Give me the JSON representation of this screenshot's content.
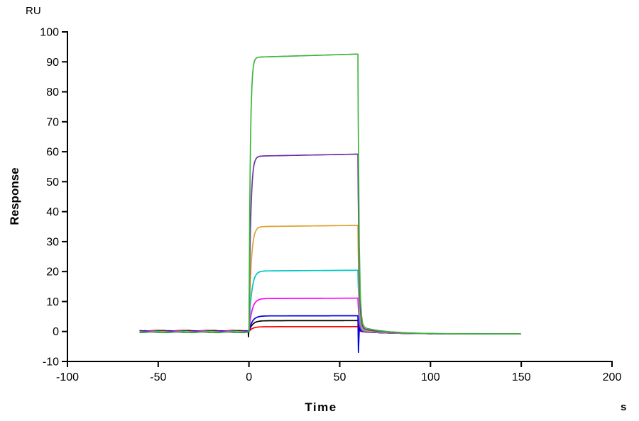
{
  "chart_data": {
    "type": "line",
    "title": "",
    "xlabel": "Time",
    "x_unit": "s",
    "ylabel": "Response",
    "y_unit": "RU",
    "xlim": [
      -100,
      200
    ],
    "ylim": [
      -10,
      100
    ],
    "x_ticks": [
      -100,
      -50,
      0,
      50,
      100,
      150,
      200
    ],
    "y_ticks": [
      -10,
      0,
      10,
      20,
      30,
      40,
      50,
      60,
      70,
      80,
      90,
      100
    ],
    "grid": false,
    "legend": "none",
    "axis_color": "#000000",
    "baseline_start": -60,
    "association_start": 0,
    "dissociation_start": 60,
    "end_time": 150,
    "assoc_rate_min": 0.5,
    "assoc_rate_scale": 0.9,
    "dissoc_rate": 1.6,
    "slow_dissoc_fraction": 0.02,
    "slow_dissoc_rate": 0.08,
    "tail_level": -0.8,
    "tail_rate": 0.06,
    "series": [
      {
        "name": "series-green",
        "color": "#3cb43c",
        "plateau": 91.5
      },
      {
        "name": "series-purple",
        "color": "#7030a0",
        "plateau": 58.5
      },
      {
        "name": "series-orange",
        "color": "#e0a030",
        "plateau": 35.0
      },
      {
        "name": "series-cyan",
        "color": "#00c4c4",
        "plateau": 20.2
      },
      {
        "name": "series-magenta",
        "color": "#ff00ff",
        "plateau": 11.0
      },
      {
        "name": "series-blue",
        "color": "#0000dd",
        "plateau": 5.2,
        "glitch_at_end": -7
      },
      {
        "name": "series-black",
        "color": "#000000",
        "plateau": 3.6,
        "glitch_at_start": -1.8
      },
      {
        "name": "series-red",
        "color": "#ff0000",
        "plateau": 1.6
      }
    ]
  }
}
